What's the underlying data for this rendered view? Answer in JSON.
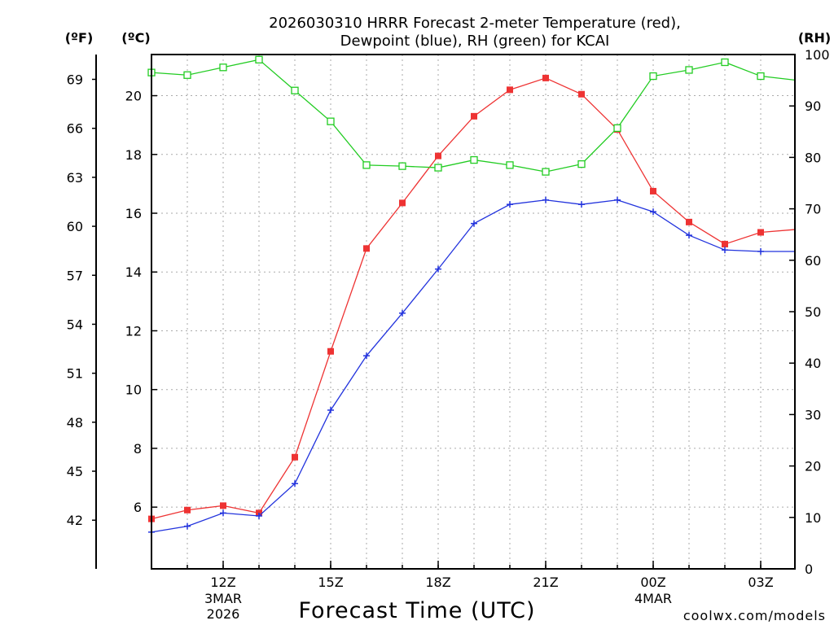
{
  "title_line1": "2026030310 HRRR Forecast 2-meter Temperature (red),",
  "title_line2": "Dewpoint (blue), RH (green) for KCAI",
  "unit_f": "(ºF)",
  "unit_c": "(ºC)",
  "unit_rh": "(RH)",
  "xlabel": "Forecast Time (UTC)",
  "credit": "coolwx.com/models",
  "colors": {
    "temperature": "#ee3333",
    "dewpoint": "#2233dd",
    "rh": "#22cc22",
    "credit": "#cc2222",
    "grid": "#aaaaaa"
  },
  "chart_data": {
    "type": "line",
    "title": "2026030310 HRRR Forecast 2-meter Temperature (red), Dewpoint (blue), RH (green) for KCAI",
    "xlabel": "Forecast Time (UTC)",
    "x_hours": [
      10,
      11,
      12,
      13,
      14,
      15,
      16,
      17,
      18,
      19,
      20,
      21,
      22,
      23,
      0,
      1,
      2,
      3,
      4
    ],
    "x_ticks": [
      {
        "label": "12Z",
        "sub": [
          "3MAR",
          "2026"
        ]
      },
      {
        "label": "15Z",
        "sub": []
      },
      {
        "label": "18Z",
        "sub": []
      },
      {
        "label": "21Z",
        "sub": []
      },
      {
        "label": "00Z",
        "sub": [
          "4MAR"
        ]
      },
      {
        "label": "03Z",
        "sub": []
      }
    ],
    "y_celsius": {
      "label": "(ºC)",
      "range": [
        3.9,
        21.4
      ],
      "ticks": [
        6,
        8,
        10,
        12,
        14,
        16,
        18,
        20
      ]
    },
    "y_fahrenheit": {
      "label": "(ºF)",
      "ticks": [
        42,
        45,
        48,
        51,
        54,
        57,
        60,
        63,
        66,
        69
      ]
    },
    "y_rh": {
      "label": "(RH)",
      "range": [
        0,
        100
      ],
      "ticks": [
        0,
        10,
        20,
        30,
        40,
        50,
        60,
        70,
        80,
        90,
        100
      ]
    },
    "grid": true,
    "series": [
      {
        "name": "Temperature",
        "units": "C",
        "marker": "filled-square",
        "values": [
          5.6,
          5.9,
          6.05,
          5.8,
          7.7,
          11.3,
          14.8,
          16.35,
          17.95,
          19.3,
          20.2,
          20.6,
          20.05,
          18.85,
          16.75,
          15.7,
          14.95,
          15.35,
          15.45
        ]
      },
      {
        "name": "Dewpoint",
        "units": "C",
        "marker": "plus",
        "values": [
          5.15,
          5.35,
          5.8,
          5.7,
          6.8,
          9.3,
          11.15,
          12.6,
          14.1,
          15.65,
          16.3,
          16.45,
          16.3,
          16.45,
          16.05,
          15.25,
          14.75,
          14.7,
          14.7
        ]
      },
      {
        "name": "RH",
        "units": "%",
        "marker": "open-square",
        "values": [
          96.5,
          96,
          97.5,
          99,
          93,
          87,
          78.5,
          78.3,
          78,
          79.5,
          78.5,
          77.2,
          78.7,
          85.7,
          95.8,
          97,
          98.5,
          95.8,
          95
        ]
      }
    ]
  }
}
